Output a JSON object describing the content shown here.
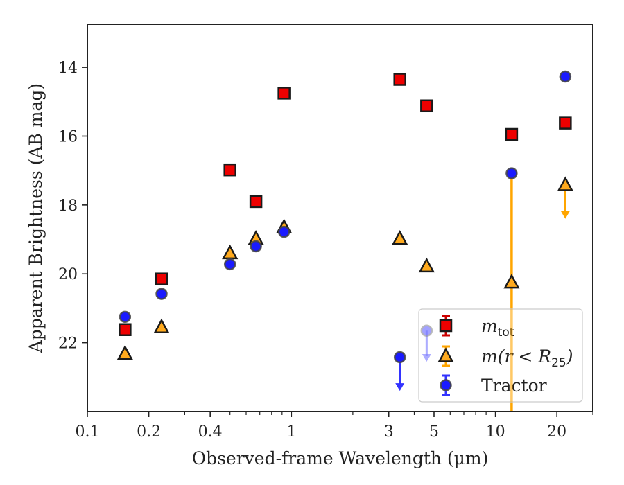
{
  "chart_data": {
    "type": "scatter",
    "title": "",
    "xlabel": "Observed-frame Wavelength (μm)",
    "ylabel": "Apparent Brightness (AB mag)",
    "xscale": "log",
    "xlim": [
      0.1,
      30
    ],
    "ylim": [
      24.0,
      12.75
    ],
    "y_inverted": true,
    "grid": false,
    "legend_position": "lower-right",
    "x_major_ticks": [
      {
        "value": 0.1,
        "label": "0.1"
      },
      {
        "value": 0.2,
        "label": "0.2"
      },
      {
        "value": 0.4,
        "label": "0.4"
      },
      {
        "value": 1,
        "label": "1"
      },
      {
        "value": 3,
        "label": "3"
      },
      {
        "value": 5,
        "label": "5"
      },
      {
        "value": 10,
        "label": "10"
      },
      {
        "value": 20,
        "label": "20"
      }
    ],
    "y_major_ticks": [
      {
        "value": 14,
        "label": "14"
      },
      {
        "value": 16,
        "label": "16"
      },
      {
        "value": 18,
        "label": "18"
      },
      {
        "value": 20,
        "label": "20"
      },
      {
        "value": 22,
        "label": "22"
      }
    ],
    "series": [
      {
        "name": "m_tot",
        "legend_main": "m",
        "legend_sub": "tot",
        "marker": "square",
        "face_color": "#ee0000",
        "edge_color": "#1a1a1a",
        "err_color": "#cc0000",
        "points": [
          {
            "x": 0.153,
            "y": 21.62
          },
          {
            "x": 0.231,
            "y": 20.15
          },
          {
            "x": 0.5,
            "y": 16.98
          },
          {
            "x": 0.67,
            "y": 17.9
          },
          {
            "x": 0.92,
            "y": 14.75
          },
          {
            "x": 3.4,
            "y": 14.35
          },
          {
            "x": 4.6,
            "y": 15.12
          },
          {
            "x": 12.0,
            "y": 15.95
          },
          {
            "x": 22.0,
            "y": 15.62
          }
        ]
      },
      {
        "name": "m(r < R_25)",
        "legend_main": "m(r < R",
        "legend_sub": "25",
        "legend_close": ")",
        "marker": "triangle",
        "face_color": "#ffaa1e",
        "edge_color": "#1a1a1a",
        "err_color": "#ffa500",
        "points": [
          {
            "x": 0.153,
            "y": 22.32
          },
          {
            "x": 0.231,
            "y": 21.55
          },
          {
            "x": 0.5,
            "y": 19.4
          },
          {
            "x": 0.67,
            "y": 18.98
          },
          {
            "x": 0.92,
            "y": 18.65
          },
          {
            "x": 3.4,
            "y": 18.98
          },
          {
            "x": 4.6,
            "y": 19.78
          },
          {
            "x": 12.0,
            "y": 20.25,
            "err_lower": 17.1
          },
          {
            "x": 22.0,
            "y": 17.42,
            "upper_limit_arrow_to": 18.4
          }
        ]
      },
      {
        "name": "Tractor",
        "legend_main": "Tractor",
        "marker": "circle",
        "face_color": "#1a1aff",
        "edge_color": "#444444",
        "err_color": "#3333ff",
        "points": [
          {
            "x": 0.153,
            "y": 21.25
          },
          {
            "x": 0.231,
            "y": 20.58
          },
          {
            "x": 0.5,
            "y": 19.72
          },
          {
            "x": 0.67,
            "y": 19.2
          },
          {
            "x": 0.92,
            "y": 18.78
          },
          {
            "x": 3.4,
            "y": 22.42,
            "upper_limit_arrow_to": 23.4
          },
          {
            "x": 4.6,
            "y": 21.65,
            "upper_limit_arrow_to": 22.55
          },
          {
            "x": 12.0,
            "y": 17.08
          },
          {
            "x": 22.0,
            "y": 14.27
          }
        ]
      }
    ]
  }
}
